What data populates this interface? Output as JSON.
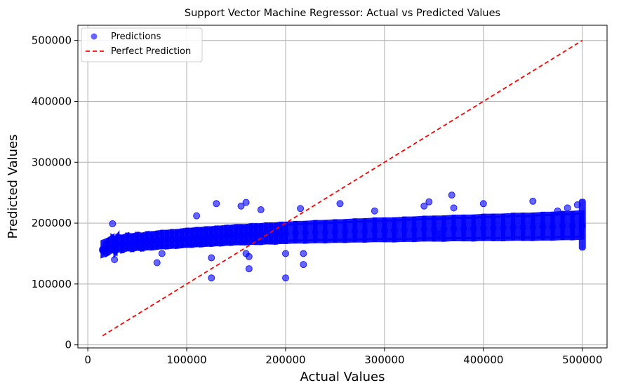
{
  "chart_data": {
    "type": "scatter",
    "title": "Support Vector Machine Regressor: Actual vs Predicted Values",
    "xlabel": "Actual Values",
    "ylabel": "Predicted Values",
    "xlim": [
      -10000,
      525000
    ],
    "ylim": [
      -5000,
      525000
    ],
    "xticks": [
      0,
      100000,
      200000,
      300000,
      400000,
      500000
    ],
    "yticks": [
      0,
      100000,
      200000,
      300000,
      400000,
      500000
    ],
    "grid": true,
    "legend_position": "upper-left",
    "series": [
      {
        "name": "Predictions",
        "kind": "scatter",
        "color": "#0000ff",
        "alpha": 0.6,
        "x": [
          15000,
          20000,
          25000,
          28000,
          30000,
          35000,
          40000,
          45000,
          50000,
          55000,
          60000,
          65000,
          70000,
          75000,
          80000,
          85000,
          90000,
          95000,
          100000,
          105000,
          110000,
          115000,
          120000,
          125000,
          130000,
          135000,
          140000,
          145000,
          150000,
          155000,
          160000,
          165000,
          170000,
          175000,
          180000,
          185000,
          190000,
          195000,
          200000,
          210000,
          220000,
          230000,
          240000,
          250000,
          260000,
          270000,
          280000,
          290000,
          300000,
          310000,
          320000,
          330000,
          340000,
          350000,
          360000,
          370000,
          380000,
          390000,
          400000,
          410000,
          420000,
          430000,
          440000,
          450000,
          460000,
          470000,
          480000,
          490000,
          500000,
          25000,
          27000,
          70000,
          110000,
          125000,
          130000,
          155000,
          160000,
          163000,
          175000,
          200000,
          215000,
          218000,
          255000,
          290000,
          340000,
          345000,
          355000,
          368000,
          370000,
          400000,
          450000,
          475000,
          485000,
          495000,
          15000,
          125000,
          163000,
          200000,
          218000,
          75000,
          160000
        ],
        "y": [
          157000,
          160000,
          165000,
          162000,
          166000,
          165000,
          168000,
          167000,
          169000,
          168000,
          170000,
          170000,
          171000,
          172000,
          172000,
          173000,
          173000,
          174000,
          175000,
          175000,
          176000,
          176000,
          177000,
          177000,
          178000,
          178000,
          179000,
          179000,
          180000,
          180000,
          180000,
          181000,
          181000,
          181000,
          182000,
          182000,
          182000,
          183000,
          183000,
          184000,
          184000,
          185000,
          185000,
          186000,
          186000,
          187000,
          187000,
          188000,
          188000,
          188000,
          189000,
          189000,
          190000,
          190000,
          190000,
          191000,
          191000,
          191000,
          192000,
          192000,
          192000,
          193000,
          193000,
          193000,
          194000,
          194000,
          195000,
          195000,
          196000,
          199000,
          140000,
          135000,
          212000,
          110000,
          232000,
          228000,
          234000,
          125000,
          222000,
          110000,
          224000,
          132000,
          232000,
          220000,
          228000,
          235000,
          182000,
          246000,
          225000,
          232000,
          236000,
          220000,
          225000,
          230000,
          155000,
          143000,
          145000,
          150000,
          150000,
          150000,
          150000
        ]
      },
      {
        "name": "Perfect Prediction",
        "kind": "line",
        "color": "#ff0000",
        "style": "dashed",
        "x": [
          15000,
          500000
        ],
        "y": [
          15000,
          500000
        ]
      }
    ]
  }
}
